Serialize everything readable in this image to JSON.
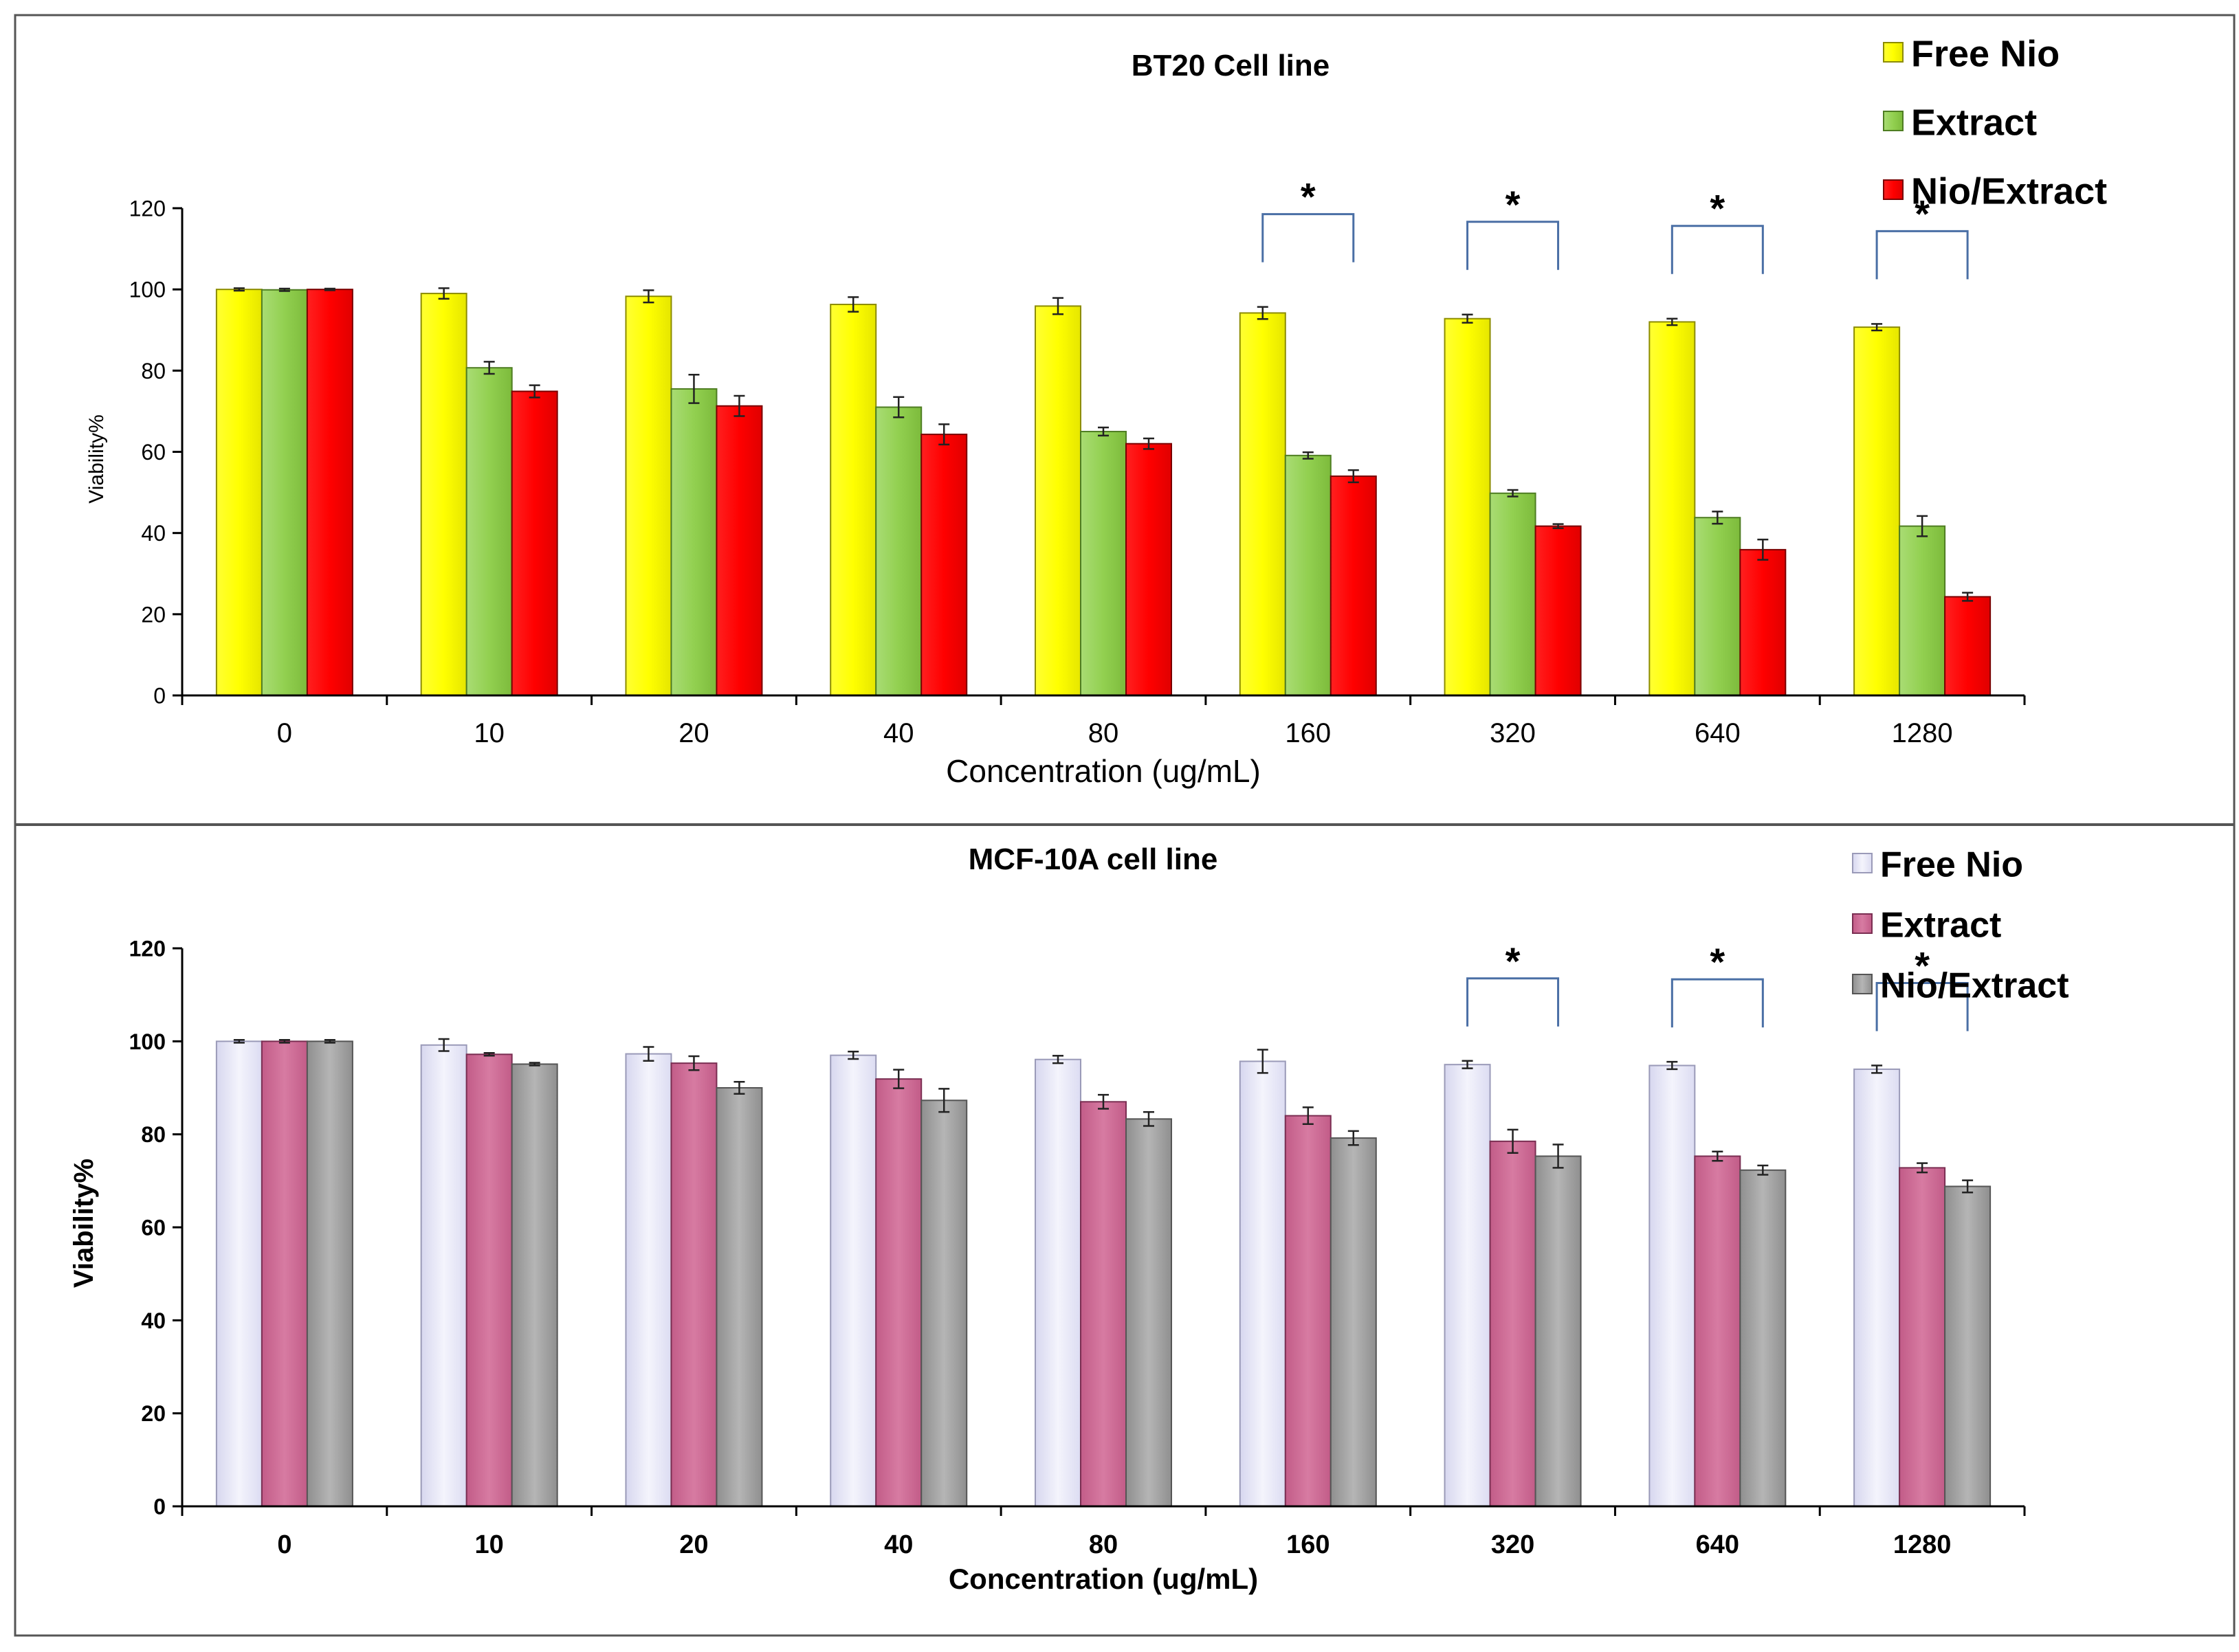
{
  "chart_data": [
    {
      "type": "bar",
      "title": "BT20 Cell line",
      "xlabel": "Concentration (ug/mL)",
      "ylabel": "Viability%",
      "ylim": [
        0,
        120
      ],
      "yticks": [
        0,
        20,
        40,
        60,
        80,
        100,
        120
      ],
      "categories": [
        "0",
        "10",
        "20",
        "40",
        "80",
        "160",
        "320",
        "640",
        "1280"
      ],
      "series": [
        {
          "name": "Free Nio",
          "color": "#ffff00",
          "values": [
            100,
            99,
            98.3,
            96.3,
            95.9,
            94.2,
            92.8,
            92,
            90.7
          ],
          "errors": [
            0.3,
            1.3,
            1.5,
            1.8,
            2,
            1.5,
            1,
            0.8,
            0.8
          ]
        },
        {
          "name": "Extract",
          "color": "#92d050",
          "values": [
            99.9,
            80.7,
            75.5,
            71,
            65,
            59.1,
            49.8,
            43.8,
            41.7
          ],
          "errors": [
            0.3,
            1.5,
            3.5,
            2.5,
            1,
            0.8,
            0.8,
            1.5,
            2.5
          ]
        },
        {
          "name": "Nio/Extract",
          "color": "#ff0000",
          "values": [
            100,
            74.9,
            71.3,
            64.3,
            62,
            54,
            41.7,
            35.9,
            24.3
          ],
          "errors": [
            0.2,
            1.5,
            2.5,
            2.5,
            1.3,
            1.5,
            0.5,
            2.5,
            1
          ]
        }
      ],
      "significance": {
        "label": "*",
        "categories": [
          "160",
          "320",
          "640",
          "1280"
        ]
      },
      "legend": "top-right"
    },
    {
      "type": "bar",
      "title": "MCF-10A cell line",
      "xlabel": "Concentration (ug/mL)",
      "ylabel": "Viability%",
      "ylim": [
        0,
        120
      ],
      "yticks": [
        0,
        20,
        40,
        60,
        80,
        100,
        120
      ],
      "categories": [
        "0",
        "10",
        "20",
        "40",
        "80",
        "160",
        "320",
        "640",
        "1280"
      ],
      "series": [
        {
          "name": "Free Nio",
          "color": "#e8e8f8",
          "values": [
            100,
            99.2,
            97.3,
            97,
            96.1,
            95.7,
            95,
            94.8,
            94
          ],
          "errors": [
            0.3,
            1.3,
            1.5,
            0.8,
            0.8,
            2.5,
            0.8,
            0.8,
            0.8
          ]
        },
        {
          "name": "Extract",
          "color": "#d06d96",
          "values": [
            100,
            97.2,
            95.3,
            91.9,
            87,
            84,
            78.5,
            75.3,
            72.8
          ],
          "errors": [
            0.3,
            0.3,
            1.5,
            2,
            1.5,
            1.8,
            2.5,
            1,
            1
          ]
        },
        {
          "name": "Nio/Extract",
          "color": "#a6a6a6",
          "values": [
            100,
            95.1,
            90,
            87.3,
            83.3,
            79.2,
            75.3,
            72.3,
            68.8
          ],
          "errors": [
            0.3,
            0.3,
            1.3,
            2.5,
            1.5,
            1.5,
            2.5,
            1,
            1.3
          ]
        }
      ],
      "significance": {
        "label": "*",
        "categories": [
          "320",
          "640",
          "1280"
        ]
      },
      "legend": "top-right"
    }
  ]
}
